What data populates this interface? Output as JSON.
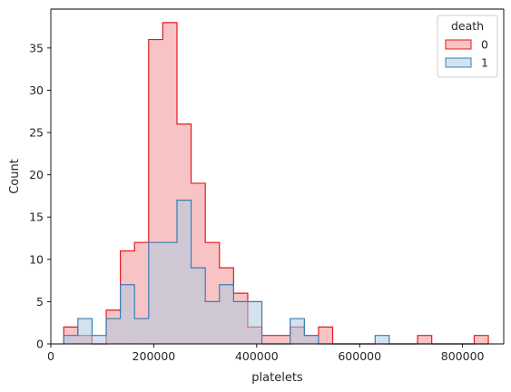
{
  "chart_data": {
    "type": "histogram",
    "title": "",
    "xlabel": "platelets",
    "ylabel": "Count",
    "xlim": [
      0,
      880000
    ],
    "ylim": [
      0,
      39.6
    ],
    "xticks": [
      0,
      200000,
      400000,
      600000,
      800000
    ],
    "yticks": [
      0,
      5,
      10,
      15,
      20,
      25,
      30,
      35
    ],
    "bin_edges": [
      25100,
      52600,
      80100,
      107600,
      135100,
      162600,
      190100,
      217600,
      245100,
      272600,
      300100,
      327600,
      355100,
      382600,
      410100,
      437600,
      465100,
      492600,
      520100,
      547600,
      575100,
      602600,
      630100,
      657600,
      685100,
      712600,
      740100,
      767600,
      795100,
      822600,
      850100
    ],
    "grid": false,
    "legend": {
      "title": "death",
      "position": "top-right"
    },
    "series": [
      {
        "name": "0",
        "color": "#e41a1c",
        "fill": "#f4a3a4",
        "values": [
          2,
          1,
          0,
          4,
          11,
          12,
          36,
          38,
          26,
          19,
          12,
          9,
          6,
          2,
          1,
          1,
          2,
          1,
          2,
          0,
          0,
          0,
          0,
          0,
          0,
          1,
          0,
          0,
          0,
          1
        ]
      },
      {
        "name": "1",
        "color": "#377eb8",
        "fill": "#afcae2",
        "values": [
          1,
          3,
          1,
          3,
          7,
          3,
          12,
          12,
          17,
          9,
          5,
          7,
          5,
          5,
          0,
          0,
          3,
          1,
          0,
          0,
          0,
          0,
          1,
          0,
          0,
          0,
          0,
          0,
          0,
          0
        ]
      }
    ]
  }
}
